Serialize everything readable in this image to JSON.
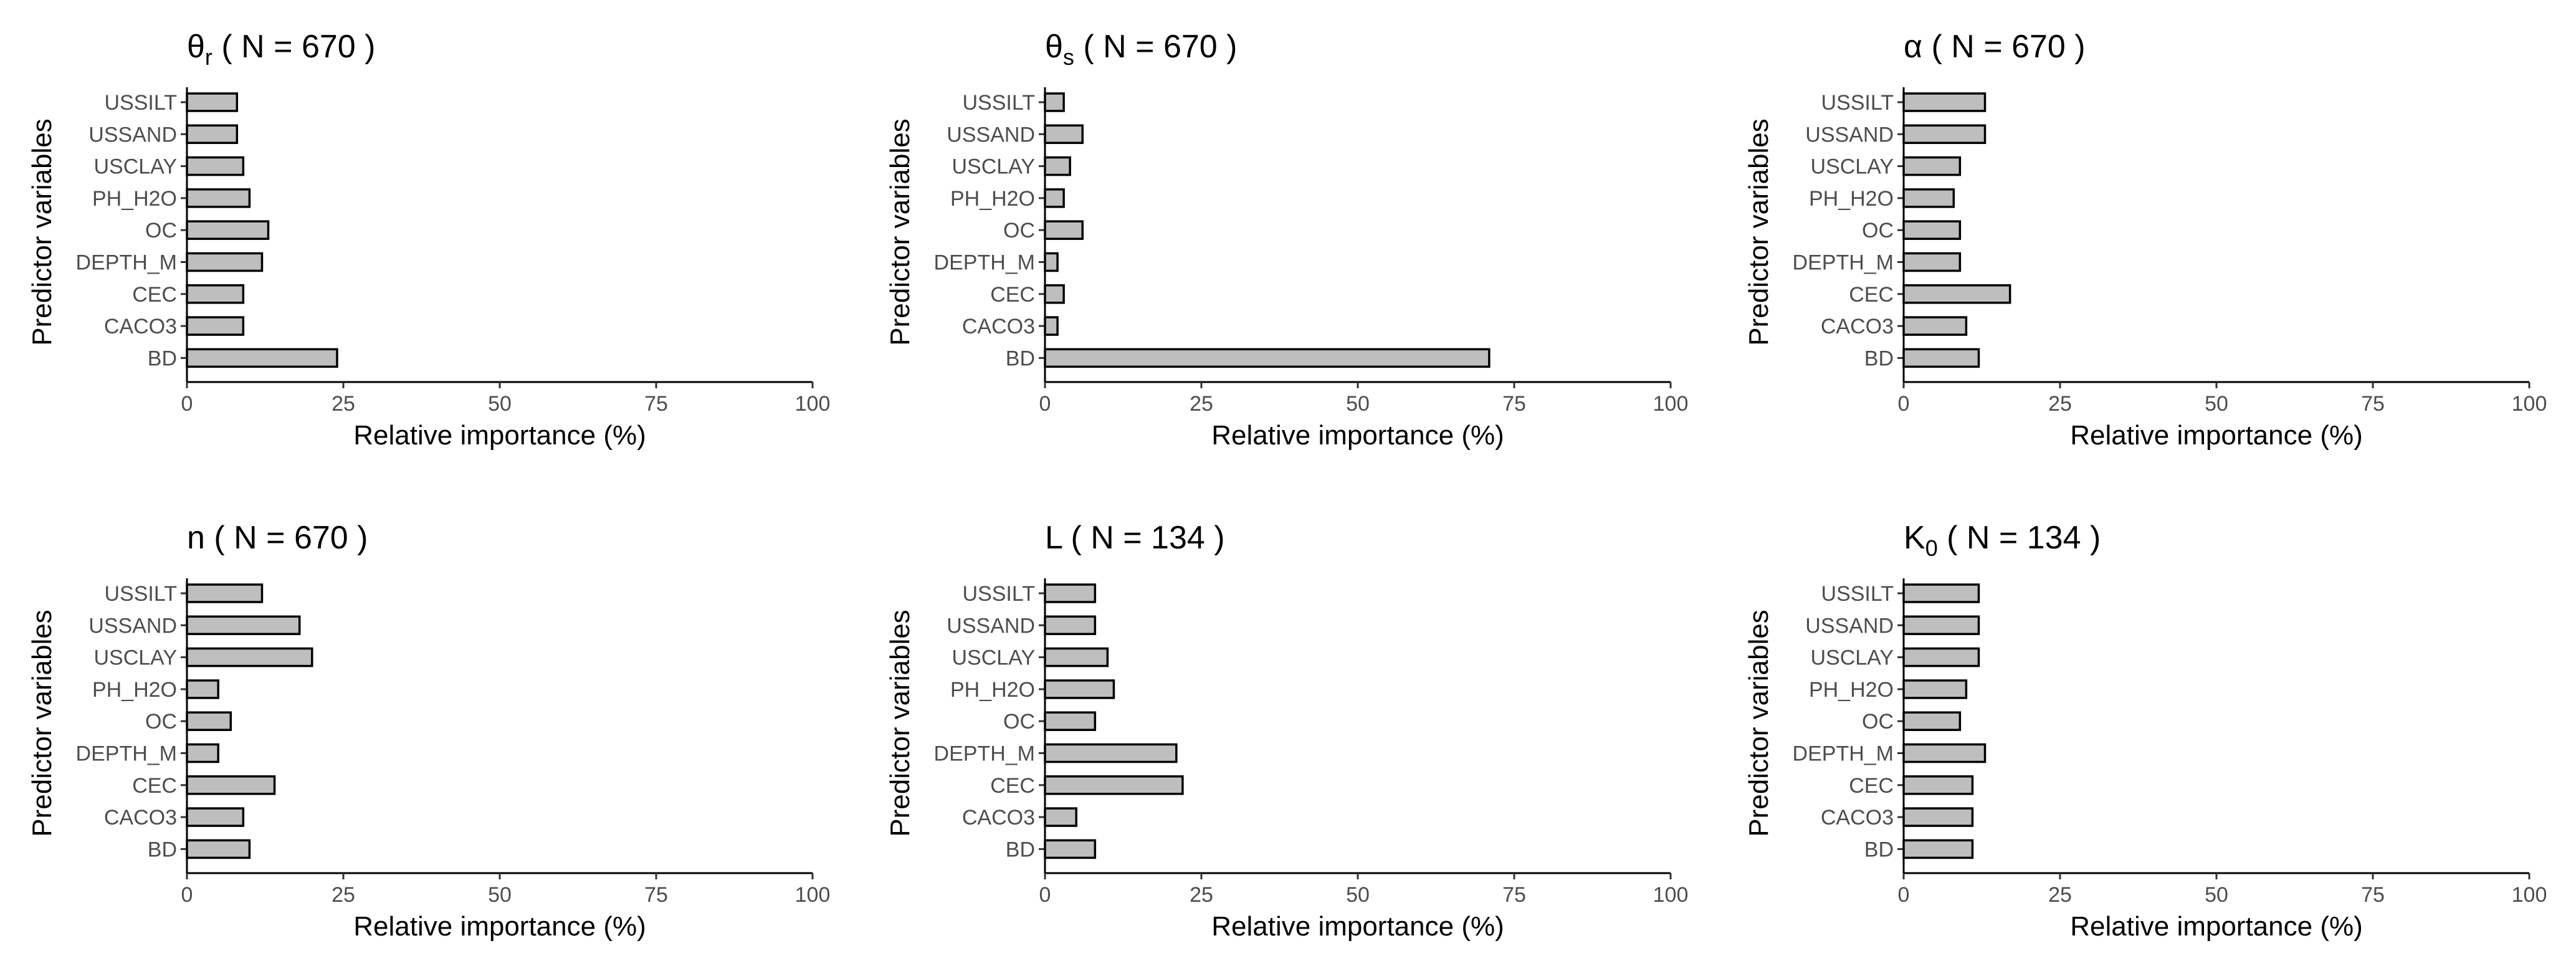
{
  "chart_data": [
    {
      "type": "bar",
      "orientation": "horizontal",
      "title_symbol": "θ",
      "title_subscript": "r",
      "title_rest": " ( N = 670 )",
      "categories": [
        "USSILT",
        "USSAND",
        "USCLAY",
        "PH_H2O",
        "OC",
        "DEPTH_M",
        "CEC",
        "CACO3",
        "BD"
      ],
      "values": [
        8,
        8,
        9,
        10,
        13,
        12,
        9,
        9,
        24
      ],
      "xlabel": "Relative importance (%)",
      "ylabel": "Predictor variables",
      "xlim": [
        0,
        100
      ],
      "xticks": [
        "0",
        "25",
        "50",
        "75",
        "100"
      ]
    },
    {
      "type": "bar",
      "orientation": "horizontal",
      "title_symbol": "θ",
      "title_subscript": "s",
      "title_rest": " ( N = 670 )",
      "categories": [
        "USSILT",
        "USSAND",
        "USCLAY",
        "PH_H2O",
        "OC",
        "DEPTH_M",
        "CEC",
        "CACO3",
        "BD"
      ],
      "values": [
        3,
        6,
        4,
        3,
        6,
        2,
        3,
        2,
        71
      ],
      "xlabel": "Relative importance (%)",
      "ylabel": "Predictor variables",
      "xlim": [
        0,
        100
      ],
      "xticks": [
        "0",
        "25",
        "50",
        "75",
        "100"
      ]
    },
    {
      "type": "bar",
      "orientation": "horizontal",
      "title_symbol": "α",
      "title_subscript": "",
      "title_rest": " ( N = 670 )",
      "categories": [
        "USSILT",
        "USSAND",
        "USCLAY",
        "PH_H2O",
        "OC",
        "DEPTH_M",
        "CEC",
        "CACO3",
        "BD"
      ],
      "values": [
        13,
        13,
        9,
        8,
        9,
        9,
        17,
        10,
        12
      ],
      "xlabel": "Relative importance (%)",
      "ylabel": "Predictor variables",
      "xlim": [
        0,
        100
      ],
      "xticks": [
        "0",
        "25",
        "50",
        "75",
        "100"
      ]
    },
    {
      "type": "bar",
      "orientation": "horizontal",
      "title_symbol": "n",
      "title_subscript": "",
      "title_rest": " ( N = 670 )",
      "categories": [
        "USSILT",
        "USSAND",
        "USCLAY",
        "PH_H2O",
        "OC",
        "DEPTH_M",
        "CEC",
        "CACO3",
        "BD"
      ],
      "values": [
        12,
        18,
        20,
        5,
        7,
        5,
        14,
        9,
        10
      ],
      "xlabel": "Relative importance (%)",
      "ylabel": "Predictor variables",
      "xlim": [
        0,
        100
      ],
      "xticks": [
        "0",
        "25",
        "50",
        "75",
        "100"
      ]
    },
    {
      "type": "bar",
      "orientation": "horizontal",
      "title_symbol": "L",
      "title_subscript": "",
      "title_rest": " ( N = 134 )",
      "categories": [
        "USSILT",
        "USSAND",
        "USCLAY",
        "PH_H2O",
        "OC",
        "DEPTH_M",
        "CEC",
        "CACO3",
        "BD"
      ],
      "values": [
        8,
        8,
        10,
        11,
        8,
        21,
        22,
        5,
        8
      ],
      "xlabel": "Relative importance (%)",
      "ylabel": "Predictor variables",
      "xlim": [
        0,
        100
      ],
      "xticks": [
        "0",
        "25",
        "50",
        "75",
        "100"
      ]
    },
    {
      "type": "bar",
      "orientation": "horizontal",
      "title_symbol": "K",
      "title_subscript": "0",
      "title_rest": " ( N = 134 )",
      "categories": [
        "USSILT",
        "USSAND",
        "USCLAY",
        "PH_H2O",
        "OC",
        "DEPTH_M",
        "CEC",
        "CACO3",
        "BD"
      ],
      "values": [
        12,
        12,
        12,
        10,
        9,
        13,
        11,
        11,
        11
      ],
      "xlabel": "Relative importance (%)",
      "ylabel": "Predictor variables",
      "xlim": [
        0,
        100
      ],
      "xticks": [
        "0",
        "25",
        "50",
        "75",
        "100"
      ]
    }
  ]
}
